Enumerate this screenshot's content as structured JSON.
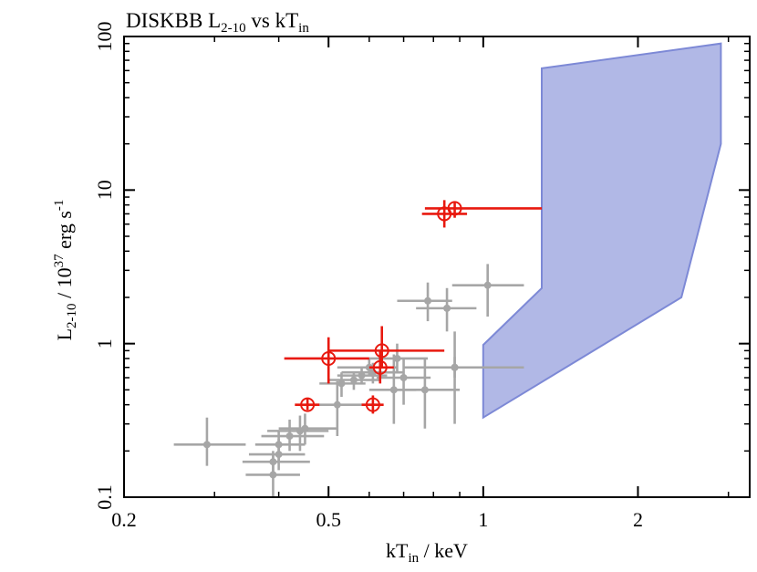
{
  "chart_data": {
    "type": "scatter",
    "title": "DISKBB L2-10 vs kTin",
    "title_main": "DISKBB L",
    "title_sub": "2-10",
    "title_mid": " vs kT",
    "title_sub2": "in",
    "xlabel": "kTin / keV",
    "xlabel_main": "kT",
    "xlabel_sub": "in",
    "xlabel_tail": " / keV",
    "ylabel": "L2-10 / 10^37 erg s^-1",
    "ylabel_main": "L",
    "ylabel_sub": "2-10",
    "ylabel_mid": " / 10",
    "ylabel_sup": "37",
    "ylabel_unit": " erg s",
    "ylabel_unit_sup": "-1",
    "xscale": "log",
    "yscale": "log",
    "xlim": [
      0.2,
      3.3
    ],
    "ylim": [
      0.1,
      100
    ],
    "x_ticks": [
      {
        "value": 0.2,
        "label": "0.2"
      },
      {
        "value": 0.5,
        "label": "0.5"
      },
      {
        "value": 1,
        "label": "1"
      },
      {
        "value": 2,
        "label": "2"
      }
    ],
    "y_ticks": [
      {
        "value": 0.1,
        "label": "0.1"
      },
      {
        "value": 1,
        "label": "1"
      },
      {
        "value": 10,
        "label": "10"
      },
      {
        "value": 100,
        "label": "100"
      }
    ],
    "colors": {
      "gray": "#a6a6a6",
      "red": "#e8190f",
      "region_fill": "#b1b8e6",
      "region_stroke": "#7d89d6"
    },
    "region": {
      "name": "blue-shaded-region",
      "vertices": [
        [
          1.0,
          0.33
        ],
        [
          2.43,
          2.0
        ],
        [
          2.9,
          20
        ],
        [
          2.9,
          90
        ],
        [
          1.3,
          62
        ],
        [
          1.3,
          2.3
        ],
        [
          1.0,
          0.98
        ]
      ]
    },
    "series": [
      {
        "name": "gray",
        "marker": "filled-circle",
        "points": [
          {
            "x": 0.29,
            "y": 0.22,
            "xerr": [
              0.25,
              0.345
            ],
            "yerr": [
              0.16,
              0.33
            ]
          },
          {
            "x": 0.39,
            "y": 0.14,
            "xerr": [
              0.345,
              0.44
            ],
            "yerr": [
              0.1,
              0.19
            ]
          },
          {
            "x": 0.39,
            "y": 0.17,
            "xerr": [
              0.34,
              0.46
            ],
            "yerr": [
              0.14,
              0.2
            ]
          },
          {
            "x": 0.4,
            "y": 0.19,
            "xerr": [
              0.35,
              0.45
            ],
            "yerr": [
              0.15,
              0.24
            ]
          },
          {
            "x": 0.4,
            "y": 0.22,
            "xerr": [
              0.36,
              0.45
            ],
            "yerr": [
              0.17,
              0.27
            ]
          },
          {
            "x": 0.42,
            "y": 0.25,
            "xerr": [
              0.37,
              0.49
            ],
            "yerr": [
              0.2,
              0.32
            ]
          },
          {
            "x": 0.44,
            "y": 0.27,
            "xerr": [
              0.38,
              0.5
            ],
            "yerr": [
              0.2,
              0.34
            ]
          },
          {
            "x": 0.45,
            "y": 0.28,
            "xerr": [
              0.4,
              0.52
            ],
            "yerr": [
              0.22,
              0.35
            ]
          },
          {
            "x": 0.52,
            "y": 0.4,
            "xerr": [
              0.45,
              0.62
            ],
            "yerr": [
              0.25,
              0.57
            ]
          },
          {
            "x": 0.53,
            "y": 0.55,
            "xerr": [
              0.48,
              0.59
            ],
            "yerr": [
              0.45,
              0.65
            ]
          },
          {
            "x": 0.56,
            "y": 0.58,
            "xerr": [
              0.5,
              0.63
            ],
            "yerr": [
              0.5,
              0.66
            ]
          },
          {
            "x": 0.58,
            "y": 0.62,
            "xerr": [
              0.52,
              0.65
            ],
            "yerr": [
              0.55,
              0.7
            ]
          },
          {
            "x": 0.6,
            "y": 0.7,
            "xerr": [
              0.52,
              0.68
            ],
            "yerr": [
              0.62,
              0.8
            ]
          },
          {
            "x": 0.61,
            "y": 0.65,
            "xerr": [
              0.53,
              0.7
            ],
            "yerr": [
              0.55,
              0.75
            ]
          },
          {
            "x": 0.67,
            "y": 0.5,
            "xerr": [
              0.6,
              0.74
            ],
            "yerr": [
              0.3,
              0.85
            ]
          },
          {
            "x": 0.68,
            "y": 0.8,
            "xerr": [
              0.6,
              0.78
            ],
            "yerr": [
              0.65,
              1.0
            ]
          },
          {
            "x": 0.7,
            "y": 0.6,
            "xerr": [
              0.62,
              0.79
            ],
            "yerr": [
              0.4,
              0.8
            ]
          },
          {
            "x": 0.77,
            "y": 0.5,
            "xerr": [
              0.68,
              0.9
            ],
            "yerr": [
              0.28,
              0.8
            ]
          },
          {
            "x": 0.78,
            "y": 1.9,
            "xerr": [
              0.68,
              0.87
            ],
            "yerr": [
              1.4,
              2.5
            ]
          },
          {
            "x": 0.85,
            "y": 1.7,
            "xerr": [
              0.74,
              0.97
            ],
            "yerr": [
              1.2,
              2.3
            ]
          },
          {
            "x": 0.88,
            "y": 0.7,
            "xerr": [
              0.7,
              1.2
            ],
            "yerr": [
              0.3,
              1.2
            ]
          },
          {
            "x": 0.88,
            "y": 0.7,
            "xerr": [
              0.75,
              1.05
            ],
            "yerr": [
              0.6,
              0.82
            ]
          },
          {
            "x": 1.02,
            "y": 2.4,
            "xerr": [
              0.87,
              1.2
            ],
            "yerr": [
              1.5,
              3.3
            ]
          }
        ]
      },
      {
        "name": "red",
        "marker": "open-circle-cross",
        "points": [
          {
            "x": 0.455,
            "y": 0.4,
            "xerr": [
              0.43,
              0.48
            ],
            "yerr": [
              0.37,
              0.44
            ]
          },
          {
            "x": 0.5,
            "y": 0.8,
            "xerr": [
              0.41,
              0.6
            ],
            "yerr": [
              0.55,
              1.1
            ]
          },
          {
            "x": 0.61,
            "y": 0.4,
            "xerr": [
              0.58,
              0.64
            ],
            "yerr": [
              0.35,
              0.46
            ]
          },
          {
            "x": 0.63,
            "y": 0.7,
            "xerr": [
              0.6,
              0.67
            ],
            "yerr": [
              0.55,
              0.9
            ]
          },
          {
            "x": 0.635,
            "y": 0.9,
            "xerr": [
              0.5,
              0.84
            ],
            "yerr": [
              0.7,
              1.3
            ]
          },
          {
            "x": 0.84,
            "y": 7.0,
            "xerr": [
              0.76,
              0.93
            ],
            "yerr": [
              5.7,
              8.6
            ]
          },
          {
            "x": 0.88,
            "y": 7.6,
            "xerr": [
              0.77,
              1.3
            ],
            "yerr": [
              6.6,
              8.4
            ]
          }
        ]
      }
    ]
  }
}
